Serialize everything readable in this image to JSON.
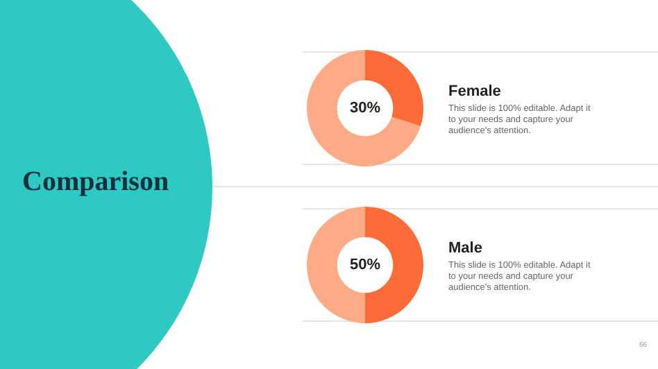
{
  "chart_data": [
    {
      "type": "other",
      "title": "Comparison",
      "annotations": [
        "66"
      ]
    },
    {
      "type": "donut",
      "title": "Female",
      "categories": [
        null,
        null
      ],
      "values": [
        30,
        70
      ],
      "colors": [
        "#fb6c38",
        "#fdaa86"
      ],
      "annotations": [
        "30%",
        "This slide is 100% editable. Adapt it to your needs and capture your audience's attention."
      ]
    },
    {
      "type": "donut",
      "title": "Male",
      "categories": [
        null,
        null
      ],
      "values": [
        50,
        50
      ],
      "colors": [
        "#fb6c38",
        "#fdaa86"
      ],
      "annotations": [
        "50%",
        "This slide is 100% editable. Adapt it to your needs and capture your audience's attention."
      ]
    }
  ]
}
